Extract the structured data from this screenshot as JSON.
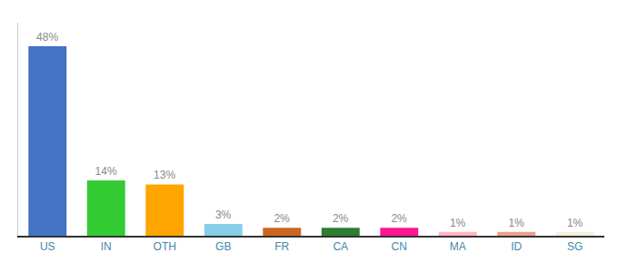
{
  "chart_data": {
    "type": "bar",
    "categories": [
      "US",
      "IN",
      "OTH",
      "GB",
      "FR",
      "CA",
      "CN",
      "MA",
      "ID",
      "SG"
    ],
    "values": [
      48,
      14,
      13,
      3,
      2,
      2,
      2,
      1,
      1,
      1
    ],
    "value_labels": [
      "48%",
      "14%",
      "13%",
      "3%",
      "2%",
      "2%",
      "2%",
      "1%",
      "1%",
      "1%"
    ],
    "colors": [
      "#4472C4",
      "#33CC33",
      "#FFA500",
      "#87CEEB",
      "#CC6622",
      "#2E7D32",
      "#FF1493",
      "#FFB6C1",
      "#E8A090",
      "#F5F0DC"
    ],
    "ylim": [
      0,
      54
    ],
    "grid": false,
    "data_labels": true,
    "tick_labels": "x"
  }
}
